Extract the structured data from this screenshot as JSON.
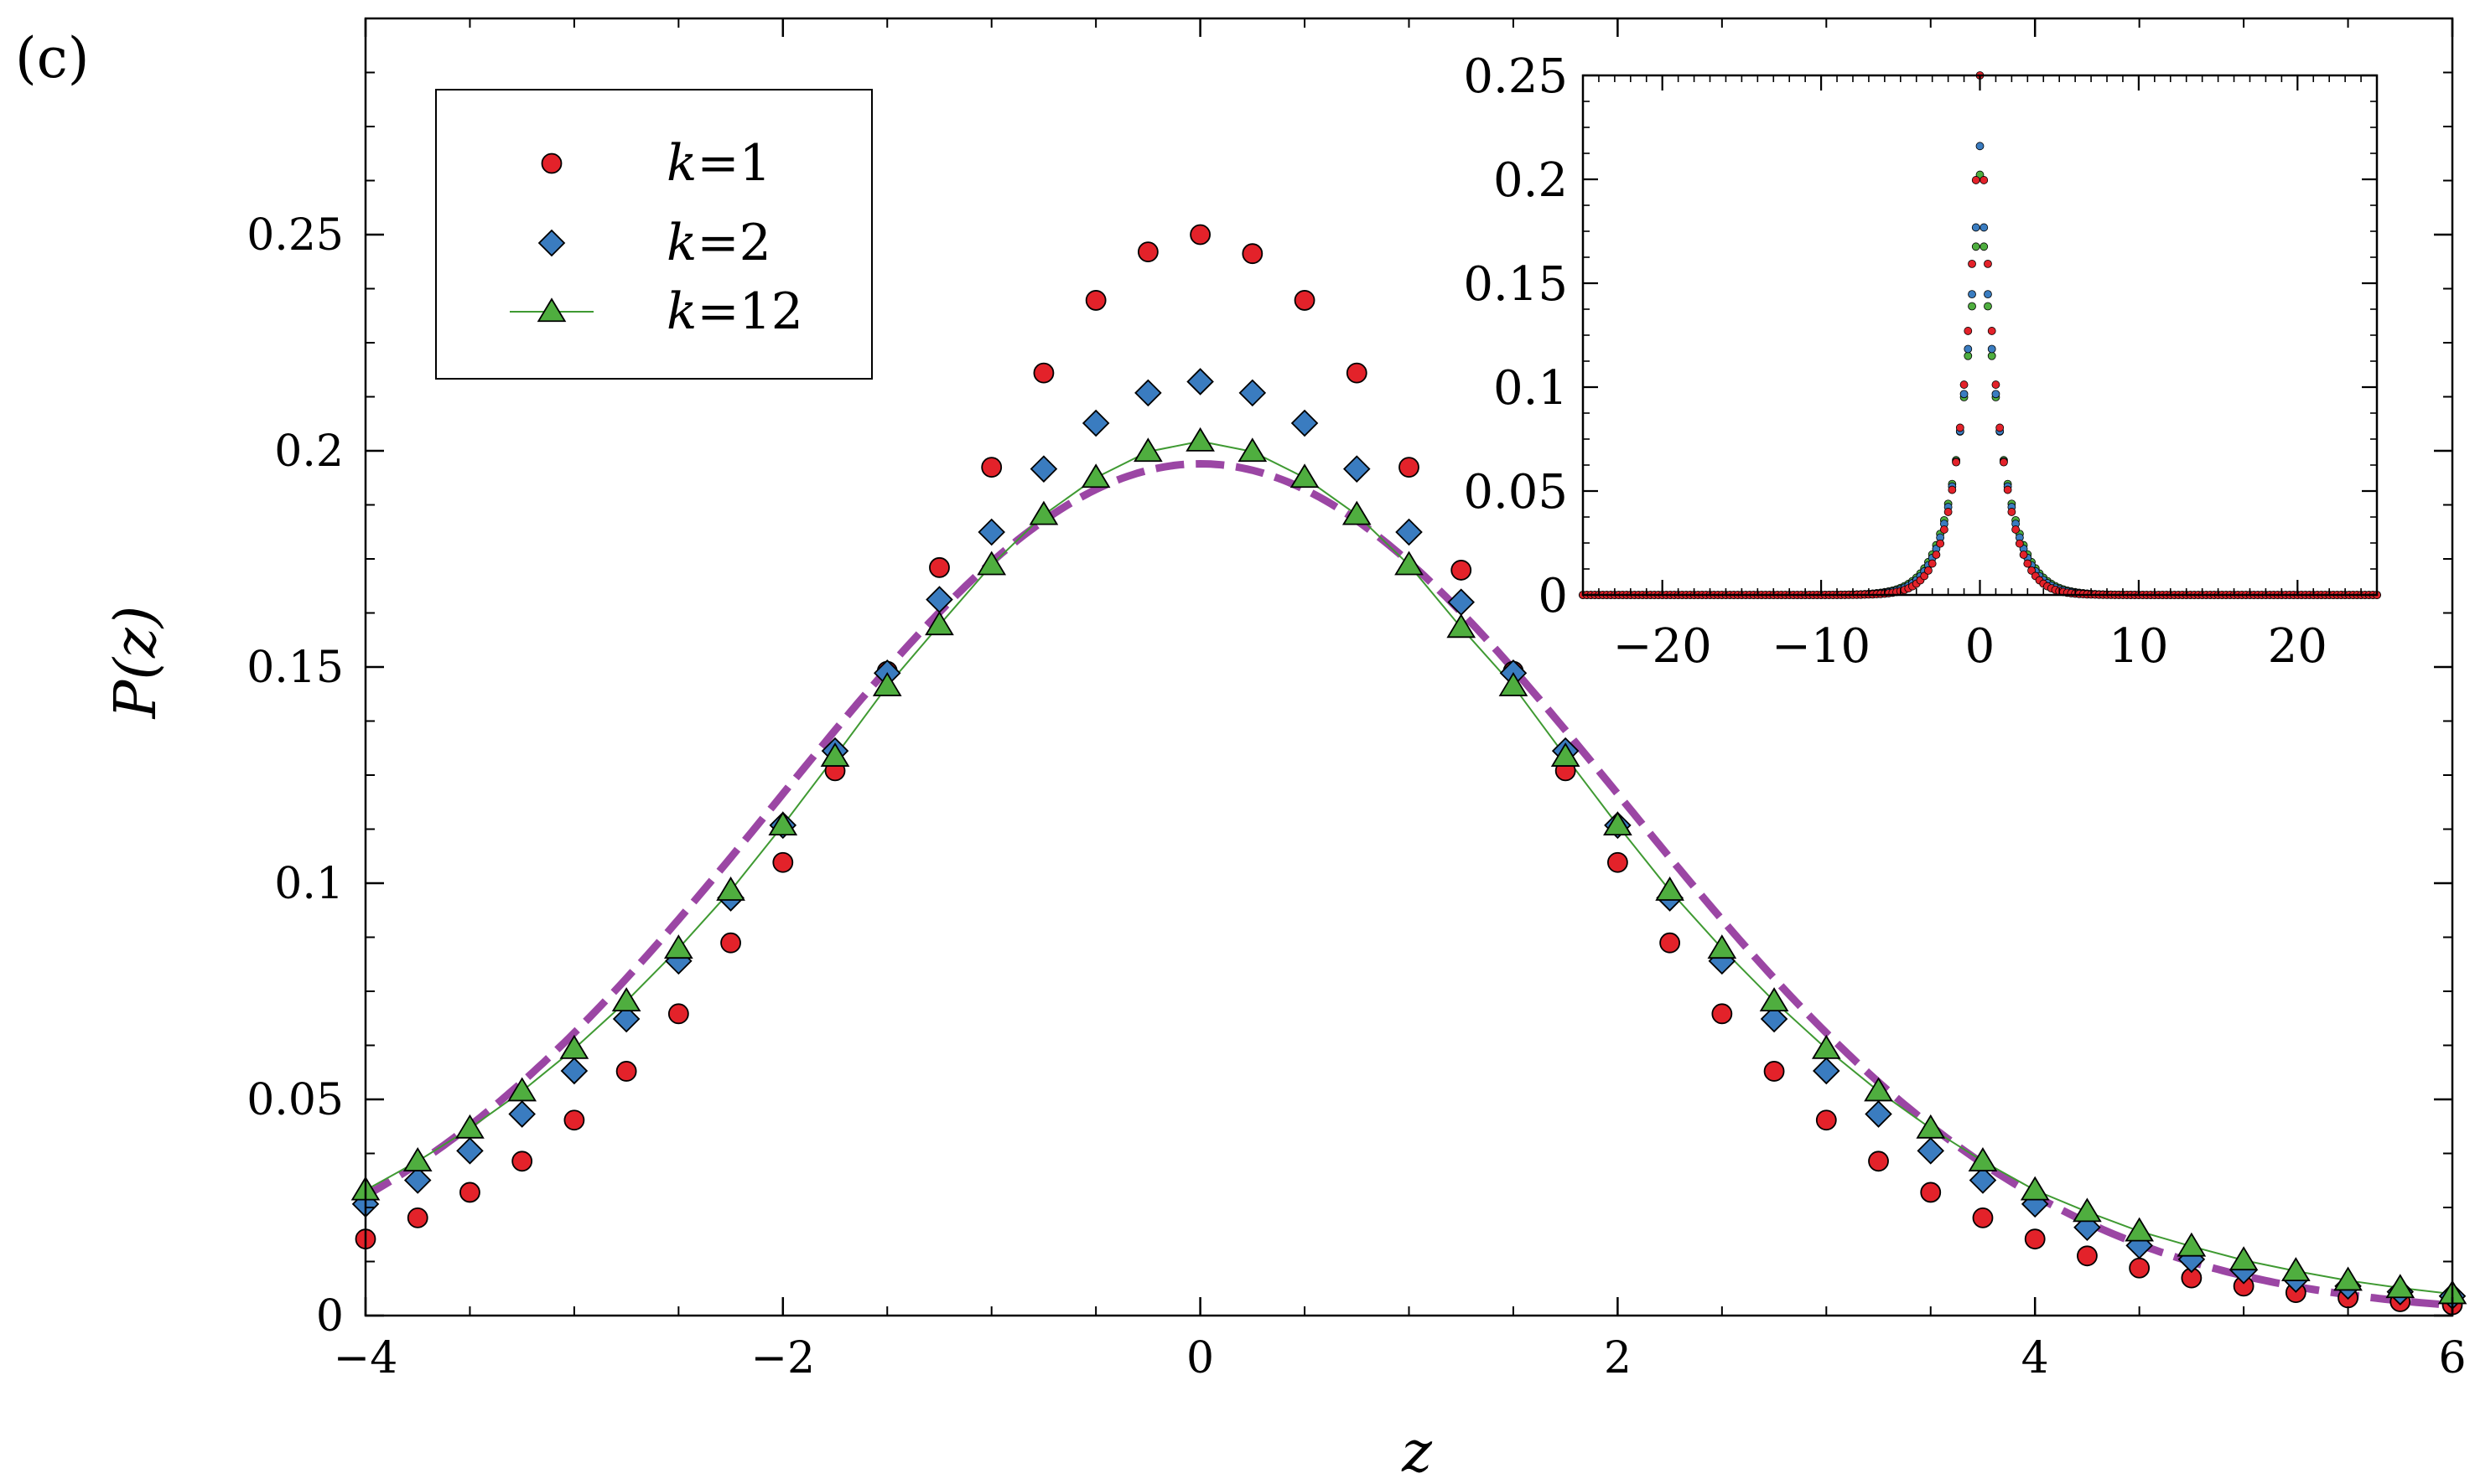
{
  "panel_label": "(c)",
  "colors": {
    "k1": "#e3222a",
    "k2": "#3a7cc0",
    "k12": "#4fae3f",
    "k12_line": "#3f9a32",
    "gaussian": "#9b46a4",
    "axis": "#000000"
  },
  "legend": {
    "entries": [
      {
        "k_prefix": "k",
        "eq": "=1",
        "series": "k1",
        "marker": "circle"
      },
      {
        "k_prefix": "k",
        "eq": "=2",
        "series": "k2",
        "marker": "diamond"
      },
      {
        "k_prefix": "k",
        "eq": "=12",
        "series": "k12",
        "marker": "triangle"
      }
    ]
  },
  "chart_data": [
    {
      "type": "scatter",
      "role": "main",
      "xlabel": "z",
      "ylabel": "P(z)",
      "xlim": [
        -4,
        6
      ],
      "ylim": [
        0,
        0.3
      ],
      "xticks": [
        "−4",
        "−2",
        "0",
        "2",
        "4",
        "6"
      ],
      "xtick_values": [
        -4,
        -2,
        0,
        2,
        4,
        6
      ],
      "yticks": [
        "0",
        "0.05",
        "0.1",
        "0.15",
        "0.2",
        "0.25"
      ],
      "ytick_values": [
        0,
        0.05,
        0.1,
        0.15,
        0.2,
        0.25
      ],
      "x": [
        -4,
        -3.75,
        -3.5,
        -3.25,
        -3,
        -2.75,
        -2.5,
        -2.25,
        -2,
        -1.75,
        -1.5,
        -1.25,
        -1,
        -0.75,
        -0.5,
        -0.25,
        0,
        0.25,
        0.5,
        0.75,
        1,
        1.25,
        1.5,
        1.75,
        2,
        2.25,
        2.5,
        2.75,
        3,
        3.25,
        3.5,
        3.75,
        4,
        4.25,
        4.5,
        4.75,
        5,
        5.25,
        5.5,
        5.75,
        6
      ],
      "series": [
        {
          "name": "k=1",
          "marker": "circle",
          "values": [
            0.0177,
            0.0226,
            0.0285,
            0.0357,
            0.0452,
            0.0565,
            0.0698,
            0.0862,
            0.1048,
            0.126,
            0.149,
            0.173,
            0.1962,
            0.218,
            0.2348,
            0.246,
            0.25,
            0.2456,
            0.2348,
            0.218,
            0.1962,
            0.1724,
            0.149,
            0.126,
            0.1048,
            0.0862,
            0.0698,
            0.0565,
            0.0452,
            0.0357,
            0.0285,
            0.0226,
            0.0177,
            0.0138,
            0.011,
            0.0087,
            0.0068,
            0.0053,
            0.0041,
            0.0032,
            0.0025
          ]
        },
        {
          "name": "k=2",
          "marker": "diamond",
          "values": [
            0.0258,
            0.0313,
            0.0381,
            0.0466,
            0.0566,
            0.0686,
            0.082,
            0.0966,
            0.1134,
            0.1306,
            0.1486,
            0.1656,
            0.1812,
            0.1958,
            0.2064,
            0.2134,
            0.216,
            0.2134,
            0.2064,
            0.1958,
            0.1812,
            0.165,
            0.1486,
            0.1306,
            0.1134,
            0.0966,
            0.082,
            0.0686,
            0.0566,
            0.0466,
            0.0381,
            0.0313,
            0.0258,
            0.0204,
            0.0162,
            0.013,
            0.0104,
            0.0084,
            0.0068,
            0.0055,
            0.0045
          ]
        },
        {
          "name": "k=12",
          "marker": "triangle",
          "line": true,
          "values": [
            0.029,
            0.0357,
            0.0433,
            0.0519,
            0.0617,
            0.0727,
            0.0849,
            0.0983,
            0.1134,
            0.1293,
            0.1456,
            0.1597,
            0.1736,
            0.1852,
            0.1938,
            0.1998,
            0.2022,
            0.1998,
            0.1938,
            0.1852,
            0.1736,
            0.1591,
            0.1456,
            0.1293,
            0.1134,
            0.0983,
            0.0849,
            0.0727,
            0.0617,
            0.0519,
            0.0433,
            0.0357,
            0.029,
            0.024,
            0.0195,
            0.016,
            0.0128,
            0.0103,
            0.0081,
            0.0064,
            0.005
          ]
        }
      ],
      "curve": {
        "kind": "dashed",
        "shape": "gaussian",
        "mean": 0,
        "sigma": 2.02,
        "peak": 0.197
      }
    },
    {
      "type": "scatter",
      "role": "inset",
      "xlim": [
        -25,
        25
      ],
      "ylim": [
        0,
        0.25
      ],
      "xticks": [
        "−20",
        "−10",
        "0",
        "10",
        "20"
      ],
      "xtick_values": [
        -20,
        -10,
        0,
        10,
        20
      ],
      "yticks": [
        "0",
        "0.05",
        "0.1",
        "0.15",
        "0.2",
        "0.25"
      ],
      "ytick_values": [
        0,
        0.05,
        0.1,
        0.15,
        0.2,
        0.25
      ],
      "series": [
        {
          "name": "k=1",
          "marker": "circle",
          "peak": 0.25,
          "decay": 0.9,
          "step": 0.25
        },
        {
          "name": "k=2",
          "marker": "circle",
          "peak": 0.216,
          "decay": 0.8,
          "step": 0.25
        },
        {
          "name": "k=12",
          "marker": "circle",
          "peak": 0.2022,
          "decay": 0.75,
          "step": 0.25
        }
      ]
    }
  ]
}
